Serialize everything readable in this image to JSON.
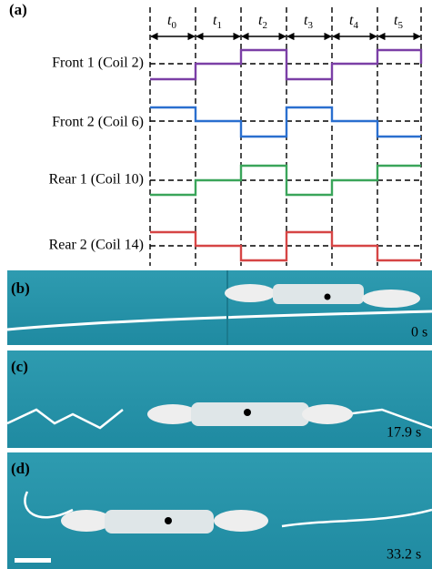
{
  "panel_a": {
    "label": "(a)",
    "time_labels": [
      {
        "symbol": "t",
        "index": "0"
      },
      {
        "symbol": "t",
        "index": "1"
      },
      {
        "symbol": "t",
        "index": "2"
      },
      {
        "symbol": "t",
        "index": "3"
      },
      {
        "symbol": "t",
        "index": "4"
      },
      {
        "symbol": "t",
        "index": "5"
      }
    ],
    "signals": [
      "Front 1 (Coil 2)",
      "Front 2 (Coil 6)",
      "Rear 1 (Coil 10)",
      "Rear 2 (Coil 14)"
    ]
  },
  "photos": [
    {
      "label": "(b)",
      "time": "0 s"
    },
    {
      "label": "(c)",
      "time": "17.9 s"
    },
    {
      "label": "(d)",
      "time": "33.2 s"
    }
  ]
}
